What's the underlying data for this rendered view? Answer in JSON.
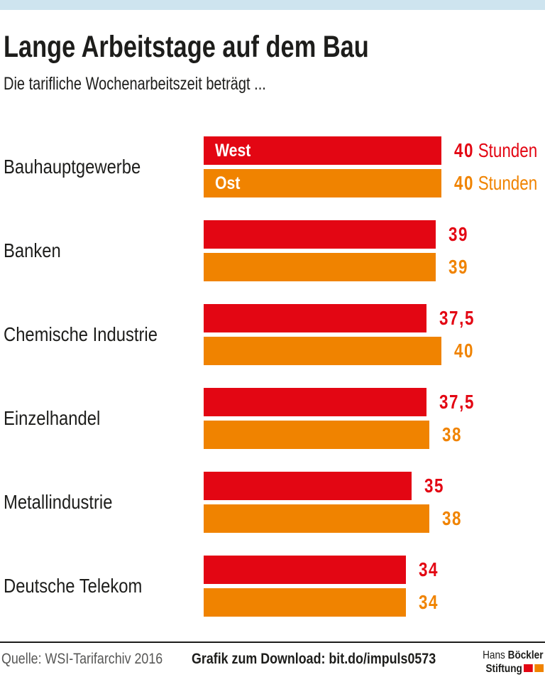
{
  "colors": {
    "red": "#e30613",
    "orange": "#f08300",
    "top_strip": "#cee4ef",
    "text": "#1d1d1b",
    "source_gray": "#575756",
    "bar_label_white": "#ffffff"
  },
  "header": {
    "title": "Lange Arbeitstage auf dem Bau",
    "subtitle": "Die tarifliche Wochenarbeitszeit beträgt ..."
  },
  "chart_data": {
    "type": "bar",
    "orientation": "horizontal",
    "title": "Lange Arbeitstage auf dem Bau",
    "subtitle": "Die tarifliche Wochenarbeitszeit beträgt ...",
    "unit": "Stunden",
    "xlim": [
      0,
      40
    ],
    "grid": false,
    "legend_position": "labels-inside-first-bar-pair",
    "unit_shown_on_first_category_only": true,
    "categories": [
      "Bauhauptgewerbe",
      "Banken",
      "Chemische Industrie",
      "Einzelhandel",
      "Metallindustrie",
      "Deutsche Telekom"
    ],
    "series": [
      {
        "name": "West",
        "color": "#e30613",
        "values": [
          40,
          39,
          37.5,
          37.5,
          35,
          34
        ],
        "display": [
          "40",
          "39",
          "37,5",
          "37,5",
          "35",
          "34"
        ]
      },
      {
        "name": "Ost",
        "color": "#f08300",
        "values": [
          40,
          39,
          40,
          38,
          38,
          34
        ],
        "display": [
          "40",
          "39",
          "40",
          "38",
          "38",
          "34"
        ]
      }
    ]
  },
  "footer": {
    "source": "Quelle: WSI-Tarifarchiv 2016",
    "download": "Grafik zum Download: bit.do/impuls0573",
    "logo": {
      "name1": "Hans",
      "name2": "Böckler",
      "line2": "Stiftung",
      "square_colors": [
        "#e30613",
        "#f08300"
      ]
    }
  }
}
